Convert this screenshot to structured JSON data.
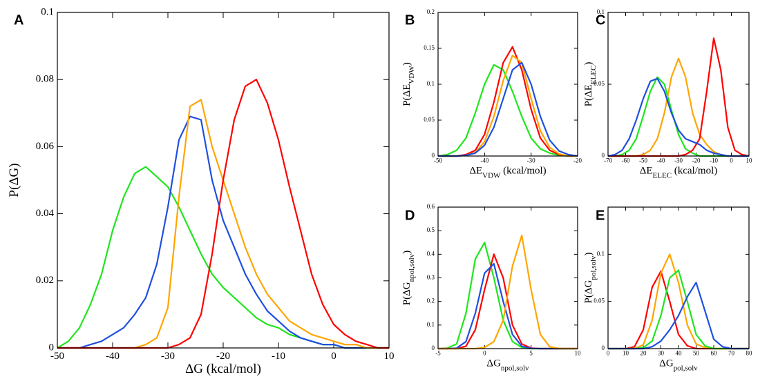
{
  "chart_data": [
    {
      "type": "line",
      "panel": "A",
      "xlabel": [
        "ΔG (kcal/mol)"
      ],
      "ylabel": [
        "P(ΔG)"
      ],
      "xlim": [
        -50,
        10
      ],
      "xticks": [
        -50,
        -40,
        -30,
        -20,
        -10,
        0,
        10
      ],
      "ylim": [
        0,
        0.1
      ],
      "yticks": [
        0,
        0.02,
        0.04,
        0.06,
        0.08,
        0.1
      ],
      "x": [
        -50,
        -48,
        -46,
        -44,
        -42,
        -40,
        -38,
        -36,
        -34,
        -32,
        -30,
        -28,
        -26,
        -24,
        -22,
        -20,
        -18,
        -16,
        -14,
        -12,
        -10,
        -8,
        -6,
        -4,
        -2,
        0,
        2,
        4,
        6,
        8,
        10
      ],
      "series": [
        {
          "color": "#1ee61e",
          "values": [
            0,
            0.002,
            0.006,
            0.013,
            0.022,
            0.035,
            0.045,
            0.052,
            0.054,
            0.051,
            0.048,
            0.042,
            0.035,
            0.028,
            0.022,
            0.018,
            0.015,
            0.012,
            0.009,
            0.007,
            0.006,
            0.004,
            0.003,
            0.002,
            0.001,
            0.001,
            0,
            0,
            0,
            0,
            0
          ]
        },
        {
          "color": "#1f4fe0",
          "values": [
            0,
            0,
            0,
            0.001,
            0.002,
            0.004,
            0.006,
            0.01,
            0.015,
            0.025,
            0.042,
            0.062,
            0.069,
            0.068,
            0.05,
            0.038,
            0.03,
            0.022,
            0.016,
            0.011,
            0.008,
            0.005,
            0.003,
            0.002,
            0.001,
            0.001,
            0,
            0,
            0,
            0,
            0
          ]
        },
        {
          "color": "#ffa500",
          "values": [
            0,
            0,
            0,
            0,
            0,
            0,
            0,
            0,
            0.001,
            0.003,
            0.012,
            0.045,
            0.072,
            0.074,
            0.06,
            0.05,
            0.04,
            0.03,
            0.022,
            0.016,
            0.012,
            0.008,
            0.006,
            0.004,
            0.003,
            0.002,
            0.001,
            0.001,
            0,
            0,
            0
          ]
        },
        {
          "color": "#ff0000",
          "values": [
            0,
            0,
            0,
            0,
            0,
            0,
            0,
            0,
            0,
            0,
            0,
            0.001,
            0.003,
            0.01,
            0.028,
            0.05,
            0.068,
            0.078,
            0.08,
            0.073,
            0.062,
            0.048,
            0.035,
            0.022,
            0.013,
            0.007,
            0.004,
            0.002,
            0.001,
            0,
            0
          ]
        }
      ]
    },
    {
      "type": "line",
      "panel": "B",
      "xlabel": [
        "ΔE",
        "VDW",
        " (kcal/mol)"
      ],
      "ylabel": [
        "P(ΔE",
        "VDW",
        ")"
      ],
      "xlim": [
        -50,
        -20
      ],
      "xticks": [
        -50,
        -40,
        -30,
        -20
      ],
      "ylim": [
        0,
        0.2
      ],
      "yticks": [
        0,
        0.05,
        0.1,
        0.15,
        0.2
      ],
      "x": [
        -50,
        -48,
        -46,
        -44,
        -42,
        -40,
        -38,
        -36,
        -34,
        -32,
        -30,
        -28,
        -26,
        -24,
        -22,
        -20
      ],
      "series": [
        {
          "color": "#1ee61e",
          "values": [
            0,
            0.002,
            0.008,
            0.025,
            0.06,
            0.1,
            0.127,
            0.12,
            0.09,
            0.055,
            0.025,
            0.01,
            0.004,
            0.001,
            0,
            0
          ]
        },
        {
          "color": "#ff0000",
          "values": [
            0,
            0,
            0,
            0.002,
            0.008,
            0.03,
            0.075,
            0.13,
            0.152,
            0.12,
            0.065,
            0.025,
            0.008,
            0.002,
            0,
            0
          ]
        },
        {
          "color": "#ffa500",
          "values": [
            0,
            0,
            0,
            0.001,
            0.005,
            0.02,
            0.055,
            0.105,
            0.14,
            0.13,
            0.08,
            0.035,
            0.012,
            0.003,
            0,
            0
          ]
        },
        {
          "color": "#1f4fe0",
          "values": [
            0,
            0,
            0,
            0.001,
            0.004,
            0.015,
            0.04,
            0.08,
            0.12,
            0.13,
            0.1,
            0.055,
            0.022,
            0.007,
            0.002,
            0
          ]
        }
      ]
    },
    {
      "type": "line",
      "panel": "C",
      "xlabel": [
        "ΔE",
        "ELEC",
        " (kcal/mol)"
      ],
      "ylabel": [
        "P(ΔE",
        "ELEC",
        ")"
      ],
      "xlim": [
        -70,
        10
      ],
      "xticks": [
        -70,
        -60,
        -50,
        -40,
        -30,
        -20,
        -10,
        0,
        10
      ],
      "ylim": [
        0,
        0.1
      ],
      "yticks": [
        0,
        0.05,
        0.1
      ],
      "x": [
        -70,
        -66,
        -62,
        -58,
        -54,
        -50,
        -46,
        -42,
        -38,
        -34,
        -30,
        -26,
        -22,
        -18,
        -14,
        -10,
        -6,
        -2,
        2,
        6,
        10
      ],
      "series": [
        {
          "color": "#1ee61e",
          "values": [
            0,
            0,
            0.001,
            0.004,
            0.012,
            0.028,
            0.045,
            0.055,
            0.05,
            0.032,
            0.015,
            0.005,
            0.002,
            0,
            0,
            0,
            0,
            0,
            0,
            0,
            0
          ]
        },
        {
          "color": "#ffa500",
          "values": [
            0,
            0,
            0,
            0,
            0,
            0.001,
            0.004,
            0.012,
            0.03,
            0.055,
            0.068,
            0.055,
            0.03,
            0.015,
            0.008,
            0.003,
            0.001,
            0,
            0,
            0,
            0
          ]
        },
        {
          "color": "#ff0000",
          "values": [
            0,
            0,
            0,
            0,
            0,
            0,
            0,
            0,
            0,
            0,
            0,
            0.001,
            0.004,
            0.012,
            0.045,
            0.082,
            0.06,
            0.02,
            0.004,
            0.001,
            0
          ]
        },
        {
          "color": "#1f4fe0",
          "values": [
            0,
            0.001,
            0.004,
            0.012,
            0.025,
            0.04,
            0.052,
            0.054,
            0.045,
            0.03,
            0.018,
            0.012,
            0.01,
            0.008,
            0.004,
            0.002,
            0.001,
            0,
            0,
            0,
            0
          ]
        }
      ]
    },
    {
      "type": "line",
      "panel": "D",
      "xlabel": [
        "ΔG",
        "npol,solv",
        ""
      ],
      "ylabel": [
        "P(ΔG",
        "npol,solv",
        ")"
      ],
      "xlim": [
        -5,
        10
      ],
      "xticks": [
        -5,
        0,
        5,
        10
      ],
      "ylim": [
        0,
        0.6
      ],
      "yticks": [
        0,
        0.1,
        0.2,
        0.3,
        0.4,
        0.5,
        0.6
      ],
      "x": [
        -5,
        -4,
        -3,
        -2,
        -1,
        0,
        1,
        2,
        3,
        4,
        5,
        6,
        7,
        8,
        9,
        10
      ],
      "series": [
        {
          "color": "#1ee61e",
          "values": [
            0,
            0.002,
            0.02,
            0.15,
            0.38,
            0.45,
            0.3,
            0.12,
            0.03,
            0.005,
            0,
            0,
            0,
            0,
            0,
            0
          ]
        },
        {
          "color": "#ff0000",
          "values": [
            0,
            0,
            0,
            0.01,
            0.08,
            0.25,
            0.4,
            0.3,
            0.1,
            0.02,
            0.002,
            0,
            0,
            0,
            0,
            0
          ]
        },
        {
          "color": "#1f4fe0",
          "values": [
            0,
            0,
            0.002,
            0.03,
            0.15,
            0.32,
            0.36,
            0.2,
            0.06,
            0.01,
            0.001,
            0,
            0,
            0,
            0,
            0
          ]
        },
        {
          "color": "#ffa500",
          "values": [
            0,
            0,
            0,
            0,
            0,
            0.005,
            0.03,
            0.12,
            0.35,
            0.48,
            0.25,
            0.06,
            0.008,
            0.001,
            0,
            0
          ]
        }
      ]
    },
    {
      "type": "line",
      "panel": "E",
      "xlabel": [
        "ΔG",
        "pol,solv",
        ""
      ],
      "ylabel": [
        "P(ΔG",
        "pol,solv",
        ")"
      ],
      "xlim": [
        0,
        80
      ],
      "xticks": [
        0,
        10,
        20,
        30,
        40,
        50,
        60,
        70,
        80
      ],
      "ylim": [
        0,
        0.15
      ],
      "yticks": [
        0,
        0.05,
        0.1
      ],
      "x": [
        0,
        5,
        10,
        15,
        20,
        25,
        30,
        35,
        40,
        45,
        50,
        55,
        60,
        65,
        70,
        75,
        80
      ],
      "series": [
        {
          "color": "#ff0000",
          "values": [
            0,
            0,
            0,
            0.002,
            0.02,
            0.065,
            0.082,
            0.05,
            0.015,
            0.003,
            0,
            0,
            0,
            0,
            0,
            0,
            0
          ]
        },
        {
          "color": "#ffa500",
          "values": [
            0,
            0,
            0,
            0,
            0.004,
            0.03,
            0.08,
            0.1,
            0.07,
            0.025,
            0.005,
            0.001,
            0,
            0,
            0,
            0,
            0
          ]
        },
        {
          "color": "#1ee61e",
          "values": [
            0,
            0,
            0,
            0,
            0.001,
            0.008,
            0.035,
            0.075,
            0.083,
            0.05,
            0.015,
            0.003,
            0,
            0,
            0,
            0,
            0
          ]
        },
        {
          "color": "#1f4fe0",
          "values": [
            0,
            0,
            0,
            0,
            0,
            0.002,
            0.008,
            0.02,
            0.035,
            0.055,
            0.07,
            0.04,
            0.01,
            0.002,
            0,
            0,
            0
          ]
        }
      ]
    }
  ]
}
